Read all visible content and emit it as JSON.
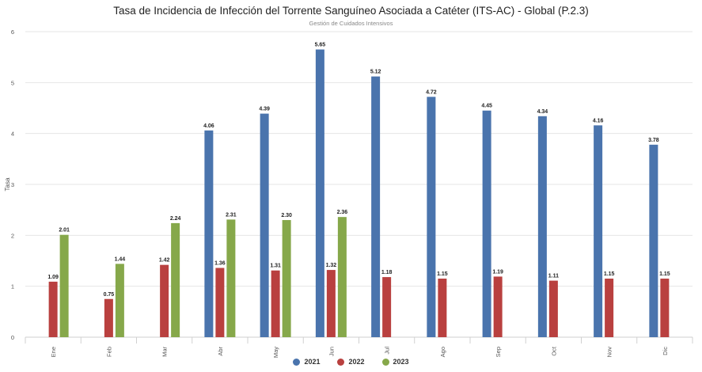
{
  "chart_data": {
    "type": "bar",
    "title": "Tasa de Incidencia de Infección del Torrente Sanguíneo Asociada a Catéter (ITS-AC) - Global (P.2.3)",
    "subtitle": "Gestión de Cuidados Intensivos",
    "ylabel": "Tasa",
    "xlabel": "",
    "ylim": [
      0,
      6
    ],
    "yticks": [
      "0",
      "1",
      "2",
      "3",
      "4",
      "5",
      "6"
    ],
    "grid": true,
    "legend_position": "bottom",
    "categories": [
      "Ene",
      "Feb",
      "Mar",
      "Abr",
      "May",
      "Jun",
      "Jul",
      "Ago",
      "Sep",
      "Oct",
      "Nov",
      "Dic"
    ],
    "series": [
      {
        "name": "2021",
        "color": "#4a74ad",
        "values": [
          null,
          null,
          null,
          4.06,
          4.39,
          5.65,
          5.12,
          4.72,
          4.45,
          4.34,
          4.16,
          3.78
        ],
        "labels": [
          "",
          "",
          "",
          "4.06",
          "4.39",
          "5.65",
          "5.12",
          "4.72",
          "4.45",
          "4.34",
          "4.16",
          "3.78"
        ]
      },
      {
        "name": "2022",
        "color": "#b9403f",
        "values": [
          1.09,
          0.75,
          1.42,
          1.36,
          1.31,
          1.32,
          1.18,
          1.15,
          1.19,
          1.11,
          1.15,
          1.15
        ],
        "labels": [
          "1.09",
          "0.75",
          "1.42",
          "1.36",
          "1.31",
          "1.32",
          "1.18",
          "1.15",
          "1.19",
          "1.11",
          "1.15",
          "1.15"
        ]
      },
      {
        "name": "2023",
        "color": "#86a84a",
        "values": [
          2.01,
          1.44,
          2.24,
          2.31,
          2.3,
          2.36,
          null,
          null,
          null,
          null,
          null,
          null
        ],
        "labels": [
          "2.01",
          "1.44",
          "2.24",
          "2.31",
          "2.30",
          "2.36",
          "",
          "",
          "",
          "",
          "",
          ""
        ]
      }
    ]
  }
}
